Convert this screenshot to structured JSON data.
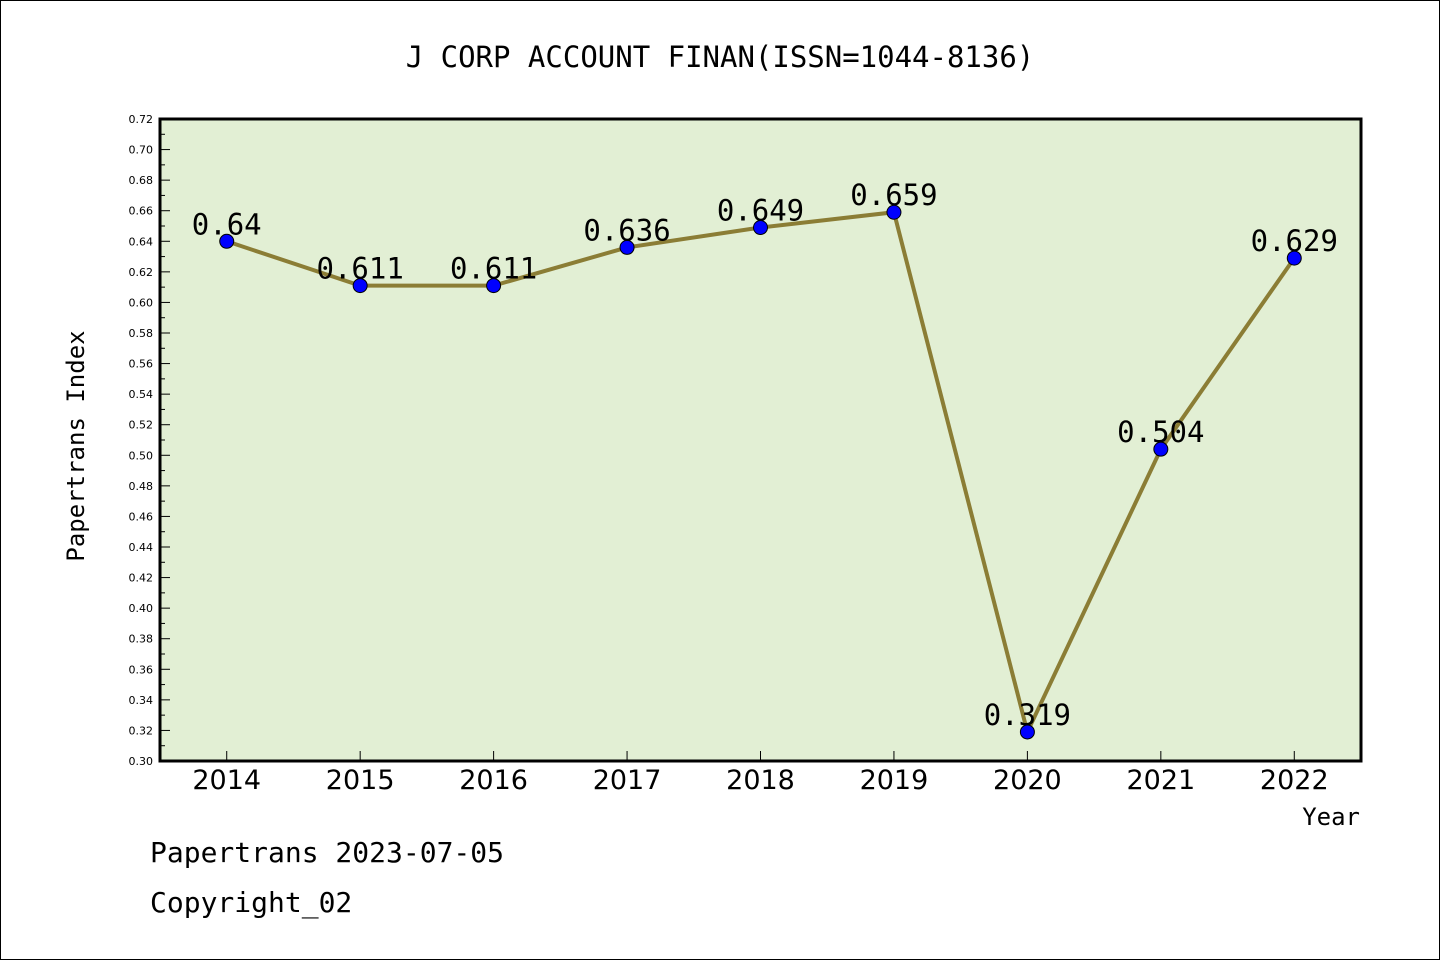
{
  "chart_data": {
    "type": "line",
    "title": "J CORP ACCOUNT FINAN(ISSN=1044-8136)",
    "xlabel": "Year",
    "ylabel": "Papertrans Index",
    "categories": [
      "2014",
      "2015",
      "2016",
      "2017",
      "2018",
      "2019",
      "2020",
      "2021",
      "2022"
    ],
    "series": [
      {
        "values": [
          0.64,
          0.611,
          0.611,
          0.636,
          0.649,
          0.659,
          0.319,
          0.504,
          0.629
        ],
        "labels": [
          "0.64",
          "0.611",
          "0.611",
          "0.636",
          "0.649",
          "0.659",
          "0.319",
          "0.504",
          "0.629"
        ]
      }
    ],
    "ylim": [
      0.3,
      0.72
    ],
    "yticks": [
      "0.30",
      "0.32",
      "0.34",
      "0.36",
      "0.38",
      "0.40",
      "0.42",
      "0.44",
      "0.46",
      "0.48",
      "0.50",
      "0.52",
      "0.54",
      "0.56",
      "0.58",
      "0.60",
      "0.62",
      "0.64",
      "0.66",
      "0.68",
      "0.70",
      "0.72"
    ],
    "grid": false,
    "colors": {
      "plot_background": "#e2efd4",
      "line": "#8b7d35",
      "marker": "#0000ff"
    }
  },
  "footer": {
    "line1": "Papertrans 2023-07-05",
    "line2": "Copyright_02"
  }
}
